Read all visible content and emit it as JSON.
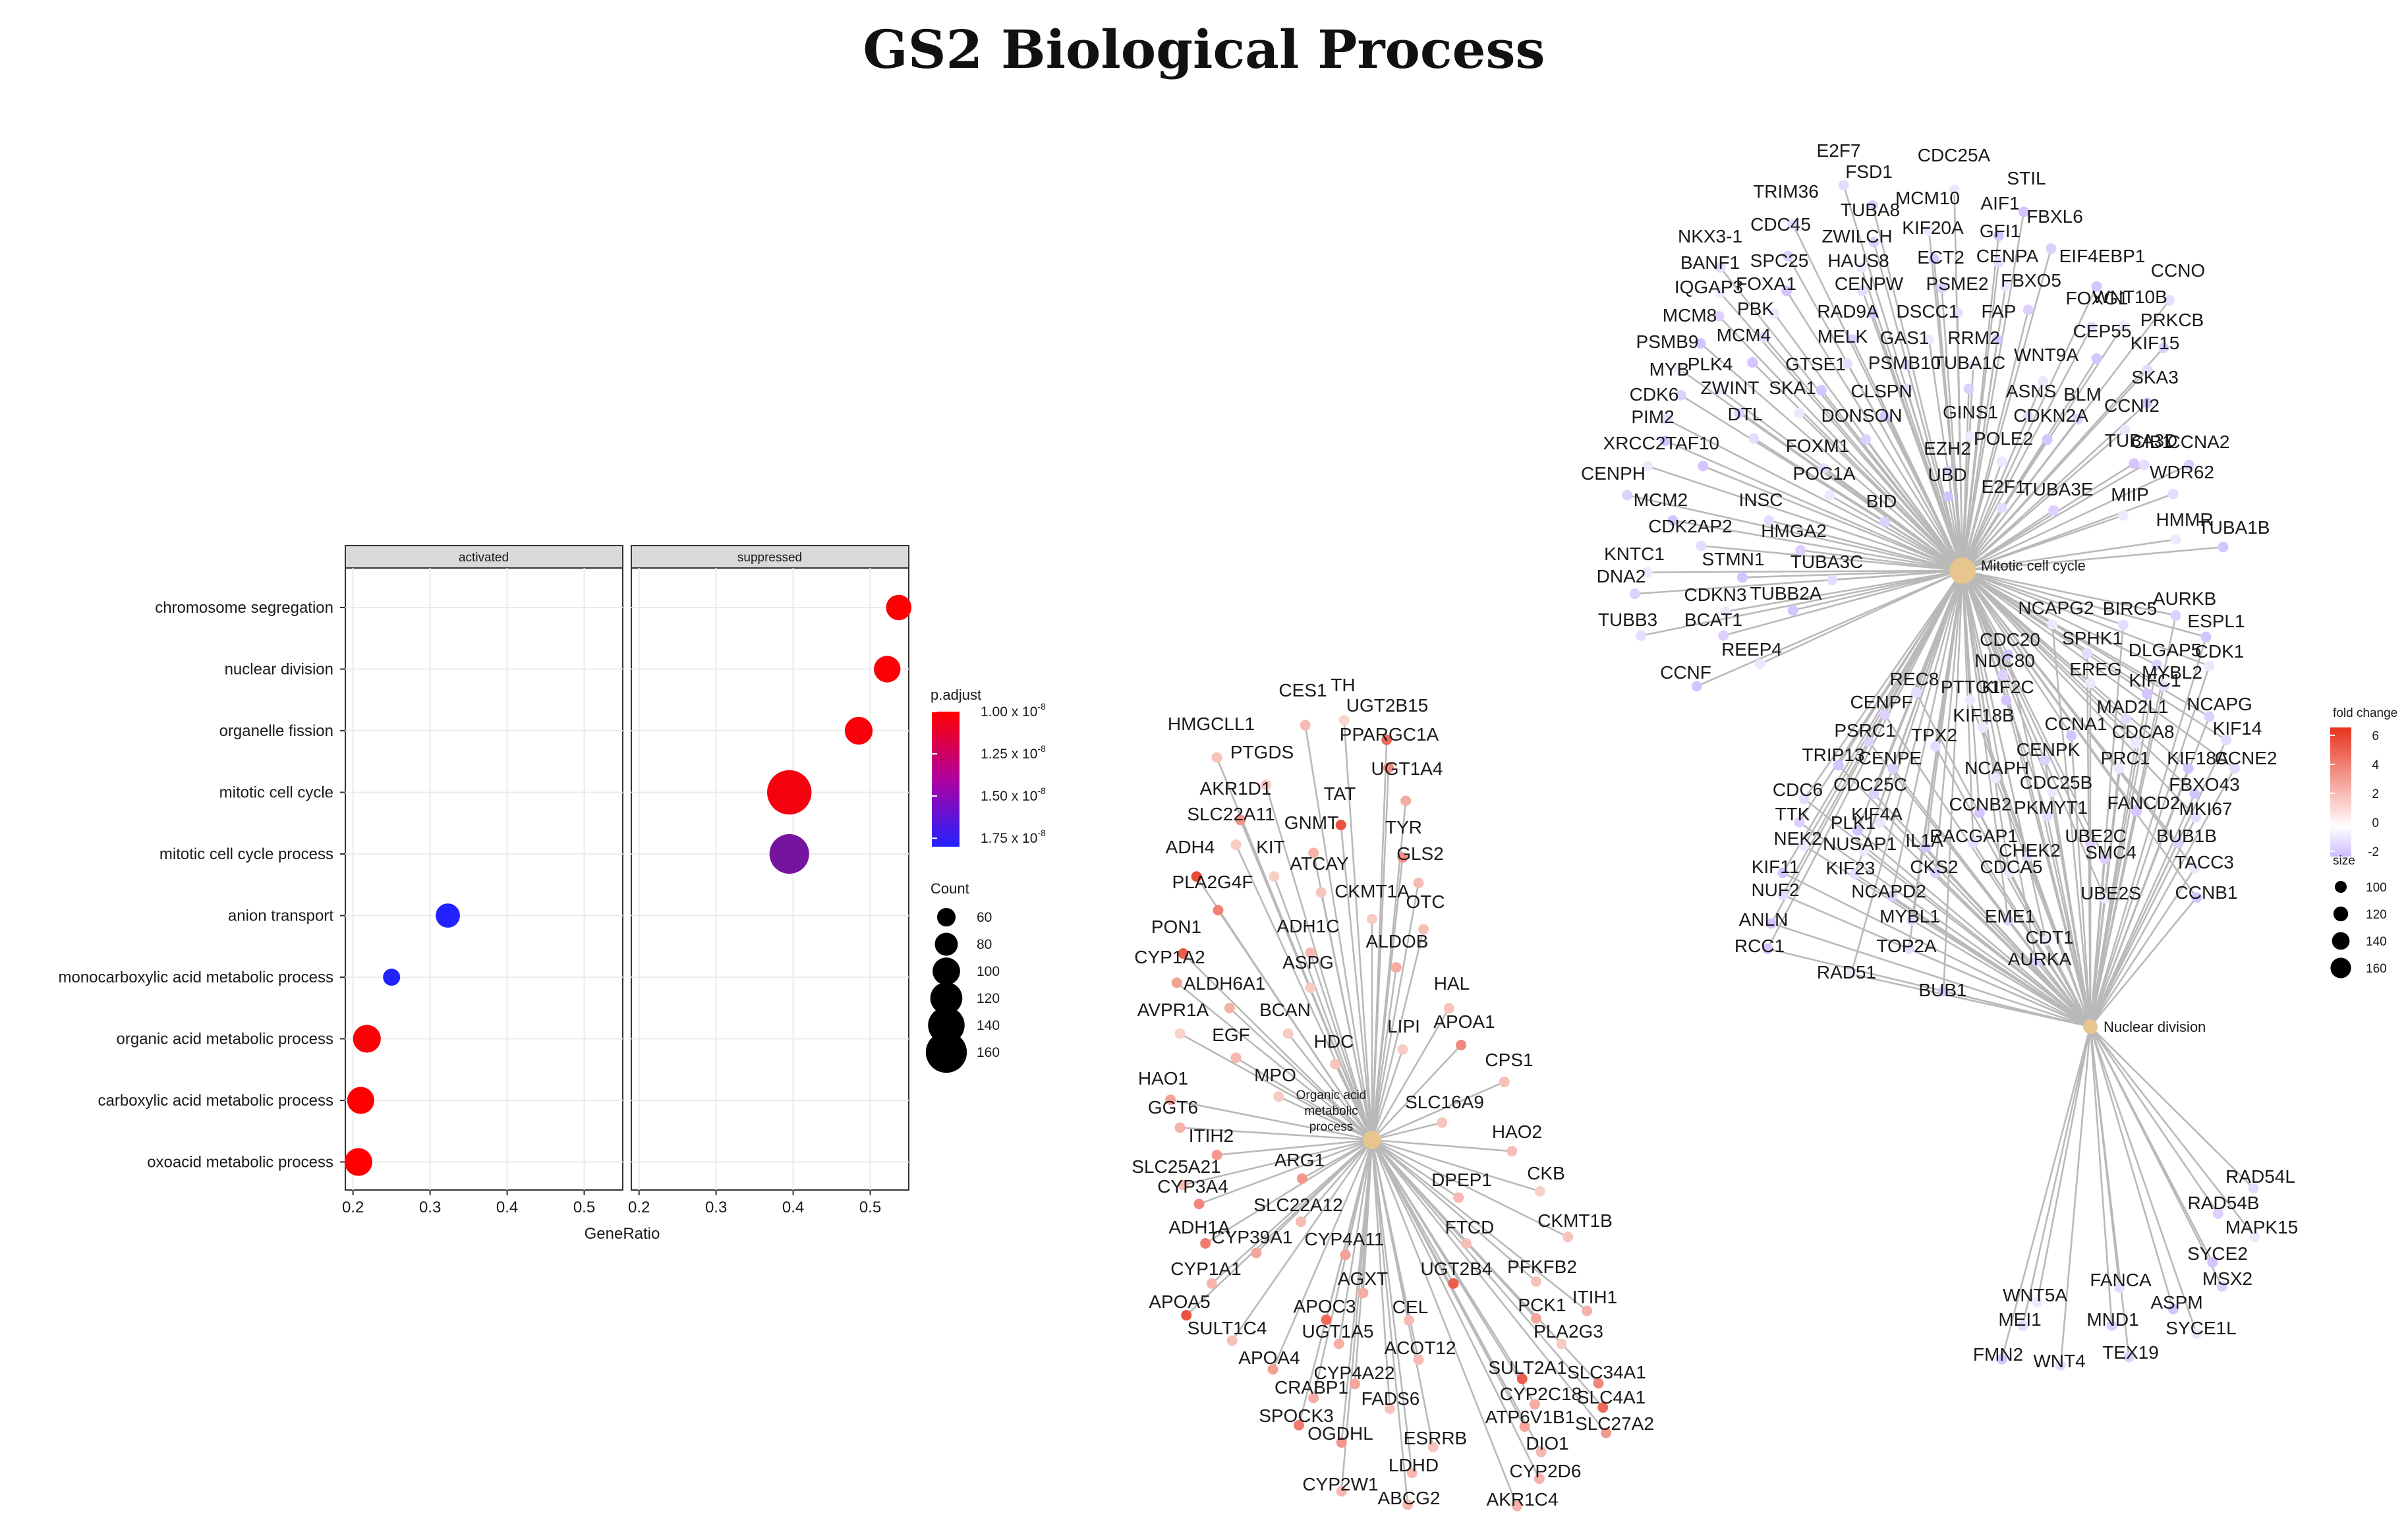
{
  "title": "GS2 Biological Process",
  "chart_data": [
    {
      "type": "scatter",
      "subtype": "dotplot",
      "facets": [
        "activated",
        "suppressed"
      ],
      "xlabel": "GeneRatio",
      "ylabel": "",
      "xlim": [
        0.19,
        0.55
      ],
      "xticks": [
        0.2,
        0.3,
        0.4,
        0.5
      ],
      "xtick_labels": [
        "0.2",
        "0.3",
        "0.4",
        "0.5"
      ],
      "categories": [
        "chromosome segregation",
        "nuclear division",
        "organelle fission",
        "mitotic cell cycle",
        "mitotic cell cycle process",
        "anion transport",
        "monocarboxylic acid metabolic process",
        "organic acid metabolic process",
        "carboxylic acid metabolic process",
        "oxoacid metabolic process"
      ],
      "points": [
        {
          "facet": "suppressed",
          "term": "chromosome segregation",
          "gene_ratio": 0.537,
          "count": 85,
          "p_adjust": 1e-08
        },
        {
          "facet": "suppressed",
          "term": "nuclear division",
          "gene_ratio": 0.522,
          "count": 90,
          "p_adjust": 1.02e-08
        },
        {
          "facet": "suppressed",
          "term": "organelle fission",
          "gene_ratio": 0.485,
          "count": 95,
          "p_adjust": 1.03e-08
        },
        {
          "facet": "suppressed",
          "term": "mitotic cell cycle",
          "gene_ratio": 0.395,
          "count": 165,
          "p_adjust": 1.04e-08
        },
        {
          "facet": "suppressed",
          "term": "mitotic cell cycle process",
          "gene_ratio": 0.395,
          "count": 145,
          "p_adjust": 1.5e-08
        },
        {
          "facet": "activated",
          "term": "anion transport",
          "gene_ratio": 0.323,
          "count": 80,
          "p_adjust": 1.8e-08
        },
        {
          "facet": "activated",
          "term": "monocarboxylic acid metabolic process",
          "gene_ratio": 0.25,
          "count": 50,
          "p_adjust": 1.8e-08
        },
        {
          "facet": "activated",
          "term": "organic acid metabolic process",
          "gene_ratio": 0.218,
          "count": 95,
          "p_adjust": 1.02e-08
        },
        {
          "facet": "activated",
          "term": "carboxylic acid metabolic process",
          "gene_ratio": 0.21,
          "count": 92,
          "p_adjust": 1e-08
        },
        {
          "facet": "activated",
          "term": "oxoacid metabolic process",
          "gene_ratio": 0.207,
          "count": 95,
          "p_adjust": 1e-08
        }
      ],
      "legend_color": {
        "title": "p.adjust",
        "range": [
          1e-08,
          1.8e-08
        ],
        "ticks": [
          1e-08,
          1.25e-08,
          1.5e-08,
          1.75e-08
        ],
        "tick_labels": [
          "1.00 x 10",
          "1.25 x 10",
          "1.50 x 10",
          "1.75 x 10"
        ],
        "exponent": "-8",
        "low_color": "#ff0000",
        "high_color": "#2222ff"
      },
      "legend_size": {
        "title": "Count",
        "values": [
          60,
          80,
          100,
          120,
          140,
          160
        ],
        "labels": [
          "60",
          "80",
          "100",
          "120",
          "140",
          "160"
        ]
      }
    },
    {
      "type": "network",
      "subtype": "cnetplot",
      "hub_labels": [
        "Organic acid",
        "metabolic",
        "process"
      ],
      "hub_value": 1,
      "genes": [
        {
          "label": "CES1",
          "v": 1.5
        },
        {
          "label": "TH",
          "v": 0.6
        },
        {
          "label": "UGT2B15",
          "v": 4.2
        },
        {
          "label": "HMGCLL1",
          "v": 1.2
        },
        {
          "label": "PPARGC1A",
          "v": 3.1
        },
        {
          "label": "PTGDS",
          "v": 1.1
        },
        {
          "label": "UGT1A4",
          "v": 2.0
        },
        {
          "label": "AKR1D1",
          "v": 2.8
        },
        {
          "label": "TAT",
          "v": 5.0
        },
        {
          "label": "TYR",
          "v": 3.0
        },
        {
          "label": "SLC22A11",
          "v": 1.0
        },
        {
          "label": "GNMT",
          "v": 1.8
        },
        {
          "label": "ADH4",
          "v": 5.2
        },
        {
          "label": "KIT",
          "v": 0.9
        },
        {
          "label": "ATCAY",
          "v": 1.2
        },
        {
          "label": "GLS2",
          "v": 1.5
        },
        {
          "label": "PLA2G4F",
          "v": 3.4
        },
        {
          "label": "CKMT1A",
          "v": 1.0
        },
        {
          "label": "OTC",
          "v": 1.3
        },
        {
          "label": "PON1",
          "v": 4.6
        },
        {
          "label": "ADH1C",
          "v": 1.6
        },
        {
          "label": "ALDOB",
          "v": 2.0
        },
        {
          "label": "CYP1A2",
          "v": 2.4
        },
        {
          "label": "ASPG",
          "v": 1.0
        },
        {
          "label": "ALDH6A1",
          "v": 1.8
        },
        {
          "label": "HAL",
          "v": 1.2
        },
        {
          "label": "AVPR1A",
          "v": 0.8
        },
        {
          "label": "BCAN",
          "v": 1.0
        },
        {
          "label": "LIPI",
          "v": 1.0
        },
        {
          "label": "APOA1",
          "v": 3.2
        },
        {
          "label": "EGF",
          "v": 1.6
        },
        {
          "label": "HDC",
          "v": 1.2
        },
        {
          "label": "CPS1",
          "v": 1.4
        },
        {
          "label": "HAO1",
          "v": 2.3
        },
        {
          "label": "MPO",
          "v": 1.0
        },
        {
          "label": "GGT6",
          "v": 1.8
        },
        {
          "label": "SLC16A9",
          "v": 1.2
        },
        {
          "label": "ITIH2",
          "v": 2.6
        },
        {
          "label": "HAO2",
          "v": 1.4
        },
        {
          "label": "SLC25A21",
          "v": 1.5
        },
        {
          "label": "ARG1",
          "v": 2.7
        },
        {
          "label": "CKB",
          "v": 0.8
        },
        {
          "label": "CYP3A4",
          "v": 3.2
        },
        {
          "label": "DPEP1",
          "v": 1.6
        },
        {
          "label": "SLC22A12",
          "v": 1.5
        },
        {
          "label": "ADH1A",
          "v": 3.6
        },
        {
          "label": "CKMT1B",
          "v": 1.2
        },
        {
          "label": "CYP39A1",
          "v": 2.2
        },
        {
          "label": "FTCD",
          "v": 1.4
        },
        {
          "label": "CYP4A11",
          "v": 2.4
        },
        {
          "label": "CYP1A1",
          "v": 1.7
        },
        {
          "label": "PFKFB2",
          "v": 1.3
        },
        {
          "label": "UGT2B4",
          "v": 4.6
        },
        {
          "label": "AGXT",
          "v": 2.0
        },
        {
          "label": "ITIH1",
          "v": 1.8
        },
        {
          "label": "APOA5",
          "v": 5.0
        },
        {
          "label": "APOC3",
          "v": 4.2
        },
        {
          "label": "CEL",
          "v": 1.5
        },
        {
          "label": "PCK1",
          "v": 2.2
        },
        {
          "label": "SULT1C4",
          "v": 1.3
        },
        {
          "label": "UGT1A5",
          "v": 1.9
        },
        {
          "label": "PLA2G3",
          "v": 1.0
        },
        {
          "label": "ACOT12",
          "v": 1.5
        },
        {
          "label": "APOA4",
          "v": 2.4
        },
        {
          "label": "SULT2A1",
          "v": 4.6
        },
        {
          "label": "SLC34A1",
          "v": 3.2
        },
        {
          "label": "CYP4A22",
          "v": 2.2
        },
        {
          "label": "CYP2C18",
          "v": 2.0
        },
        {
          "label": "CRABP1",
          "v": 2.0
        },
        {
          "label": "FADS6",
          "v": 1.2
        },
        {
          "label": "SLC4A1",
          "v": 4.2
        },
        {
          "label": "SPOCK3",
          "v": 3.6
        },
        {
          "label": "ATP6V1B1",
          "v": 2.2
        },
        {
          "label": "SLC27A2",
          "v": 2.6
        },
        {
          "label": "OGDHL",
          "v": 2.8
        },
        {
          "label": "ESRRB",
          "v": 1.2
        },
        {
          "label": "DIO1",
          "v": 1.6
        },
        {
          "label": "LDHD",
          "v": 1.6
        },
        {
          "label": "CYP2W1",
          "v": 1.6
        },
        {
          "label": "CYP2D6",
          "v": 1.8
        },
        {
          "label": "ABCG2",
          "v": 1.6
        },
        {
          "label": "AKR1C4",
          "v": 1.8
        }
      ]
    },
    {
      "type": "network",
      "subtype": "cnetplot",
      "hubs": [
        {
          "label": "Mitotic cell cycle",
          "v": 1.5
        },
        {
          "label": "Nuclear division",
          "v": 1.5
        }
      ],
      "mitotic_genes": [
        "E2F7",
        "FSD1",
        "CDC25A",
        "STIL",
        "TRIM36",
        "TUBA8",
        "MCM10",
        "AIF1",
        "NKX3-1",
        "CDC45",
        "ZWILCH",
        "KIF20A",
        "GFI1",
        "FBXL6",
        "BANF1",
        "SPC25",
        "HAUS8",
        "ECT2",
        "CENPA",
        "EIF4EBP1",
        "CCNO",
        "IQGAP3",
        "FOXA1",
        "CENPW",
        "PSME2",
        "FBXO5",
        "WNT10B",
        "MCM8",
        "PBK",
        "RAD9A",
        "DSCC1",
        "FAP",
        "FOXG1",
        "PRKCB",
        "PSMB9",
        "MCM4",
        "MELK",
        "GAS1",
        "RRM2",
        "CEP55",
        "KIF15",
        "MYB",
        "PLK4",
        "GTSE1",
        "PSMB10",
        "TUBA1C",
        "WNT9A",
        "SKA3",
        "CDK6",
        "ZWINT",
        "SKA1",
        "CLSPN",
        "ASNS",
        "BLM",
        "CCNI2",
        "PIM2",
        "DTL",
        "DONSON",
        "GINS1",
        "CDKN2A",
        "CIB1",
        "CCNA2",
        "XRCC2",
        "TAF10",
        "FOXM1",
        "EZH2",
        "POLE2",
        "TUBA3D",
        "WDR62",
        "CENPH",
        "POC1A",
        "UBD",
        "E2F1",
        "TUBA3E",
        "MIIP",
        "MCM2",
        "INSC",
        "BID",
        "HMMR",
        "TUBA1B",
        "CDK2AP2",
        "HMGA2",
        "KNTC1",
        "STMN1",
        "TUBA3C",
        "DNA2",
        "CDKN3",
        "TUBB2A",
        "TUBB3",
        "BCAT1",
        "REEP4",
        "CCNF"
      ],
      "shared_genes": [
        "BIRC5",
        "AURKB",
        "NCAPG2",
        "ESPL1",
        "SPHK1",
        "DLGAP5",
        "CDK1",
        "CDC20",
        "MYBL2",
        "NDC80",
        "EREG",
        "KIFC1",
        "REC8",
        "NCAPG",
        "PTTG1",
        "KIF2C",
        "MAD2L1",
        "CENPF",
        "KIF18B",
        "CCNA1",
        "KIF14",
        "PSRC1",
        "CDCA8",
        "TRIP13",
        "TPX2",
        "CENPK",
        "PRC1",
        "KIF18A",
        "CCNE2",
        "CENPE",
        "NCAPH",
        "FBXO43",
        "CDC6",
        "CDC25C",
        "CDC25B",
        "FANCD2",
        "MKI67",
        "TTK",
        "KIF4A",
        "CCNB2",
        "PKMYT1",
        "BUB1B",
        "NEK2",
        "PLK1",
        "RACGAP1",
        "UBE2C",
        "NUSAP1",
        "IL1A",
        "CHEK2",
        "SMC4",
        "TACC3",
        "KIF11",
        "KIF23",
        "CKS2",
        "CDCA5",
        "CCNB1",
        "NUF2",
        "NCAPD2",
        "UBE2S",
        "ANLN",
        "MYBL1",
        "EME1",
        "CDT1",
        "RCC1",
        "TOP2A",
        "AURKA",
        "RAD51",
        "BUB1"
      ],
      "nuclear_genes": [
        "RAD54L",
        "RAD54B",
        "MAPK15",
        "SYCE2",
        "FANCA",
        "MSX2",
        "WNT5A",
        "ASPM",
        "MEI1",
        "MND1",
        "SYCE1L",
        "FMN2",
        "WNT4",
        "TEX19"
      ],
      "legend_color": {
        "title": "fold change",
        "ticks": [
          6,
          4,
          2,
          0,
          -2
        ],
        "labels": [
          "6",
          "4",
          "2",
          "0",
          "-2"
        ],
        "high_color": "#e8321e",
        "mid_color": "#ffffff",
        "low_color": "#cdbbff"
      },
      "legend_size": {
        "title": "size",
        "values": [
          100,
          120,
          140,
          160
        ],
        "labels": [
          "100",
          "120",
          "140",
          "160"
        ]
      }
    }
  ]
}
